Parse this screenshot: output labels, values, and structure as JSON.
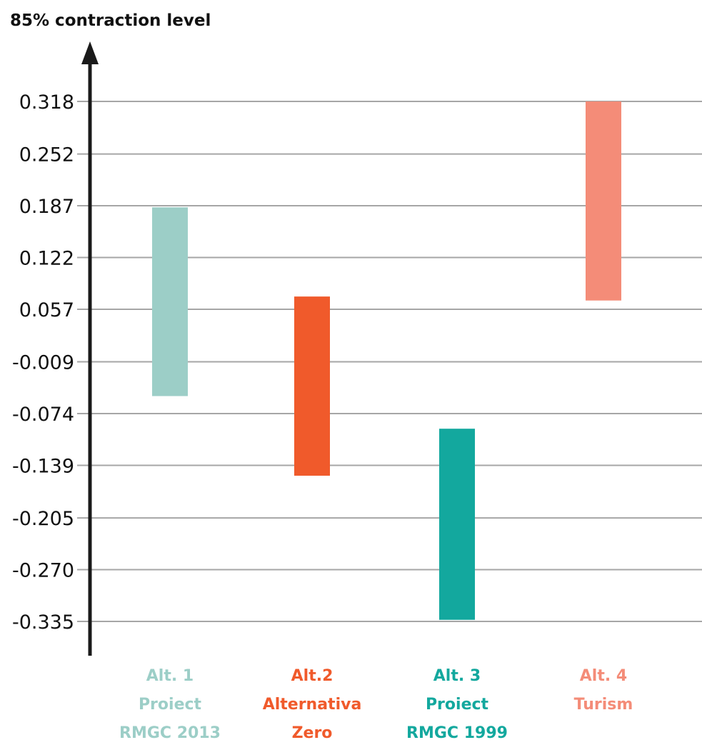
{
  "chart_data": {
    "type": "bar",
    "subtype": "floating-range",
    "title": "85% contraction level",
    "y_ticks": [
      "0.318",
      "0.252",
      "0.187",
      "0.122",
      "0.057",
      "-0.009",
      "-0.074",
      "-0.139",
      "-0.205",
      "-0.270",
      "-0.335"
    ],
    "y_tick_values": [
      0.318,
      0.252,
      0.187,
      0.122,
      0.057,
      -0.009,
      -0.074,
      -0.139,
      -0.205,
      -0.27,
      -0.335
    ],
    "ylim": [
      -0.38,
      0.39
    ],
    "grid": true,
    "categories": [
      {
        "lines": [
          "Alt. 1",
          "Proiect",
          "RMGC 2013"
        ],
        "low": -0.052,
        "high": 0.185,
        "color": "#9ccec7"
      },
      {
        "lines": [
          "Alt.2",
          "Alternativa",
          "Zero"
        ],
        "low": -0.152,
        "high": 0.073,
        "color": "#f05a2b"
      },
      {
        "lines": [
          "Alt. 3",
          "Proiect",
          "RMGC 1999"
        ],
        "low": -0.333,
        "high": -0.093,
        "color": "#13a89e"
      },
      {
        "lines": [
          "Alt. 4",
          "Turism"
        ],
        "low": 0.068,
        "high": 0.318,
        "color": "#f48c78"
      }
    ]
  }
}
